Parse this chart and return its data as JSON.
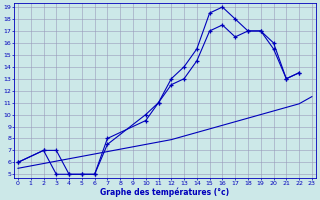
{
  "xlabel": "Graphe des températures (°c)",
  "bg_color": "#cce8e8",
  "line_color": "#0000bb",
  "grid_color": "#9999bb",
  "xmin": 0,
  "xmax": 23,
  "ymin": 5,
  "ymax": 19,
  "line1_x": [
    0,
    2,
    3,
    4,
    5,
    6,
    7,
    10,
    11,
    12,
    13,
    14,
    15,
    16,
    17,
    18,
    19,
    20,
    21,
    22
  ],
  "line1_y": [
    6.0,
    7.0,
    7.0,
    5.0,
    5.0,
    5.0,
    8.0,
    9.5,
    11.0,
    13.0,
    14.0,
    15.5,
    18.5,
    19.0,
    18.0,
    17.0,
    17.0,
    16.0,
    13.0,
    13.5
  ],
  "line2_x": [
    0,
    2,
    3,
    4,
    5,
    6,
    7,
    10,
    11,
    12,
    13,
    14,
    15,
    16,
    17,
    18,
    19,
    20,
    21,
    22
  ],
  "line2_y": [
    6.0,
    7.0,
    5.0,
    5.0,
    5.0,
    5.0,
    7.5,
    10.0,
    11.0,
    12.5,
    13.0,
    14.5,
    17.0,
    17.5,
    16.5,
    17.0,
    17.0,
    15.5,
    13.0,
    13.5
  ],
  "line3_x": [
    0,
    1,
    2,
    3,
    4,
    5,
    6,
    7,
    8,
    9,
    10,
    11,
    12,
    13,
    14,
    15,
    16,
    17,
    18,
    19,
    20,
    21,
    22,
    23
  ],
  "line3_y": [
    5.5,
    5.7,
    5.9,
    6.1,
    6.3,
    6.5,
    6.7,
    6.9,
    7.1,
    7.3,
    7.5,
    7.7,
    7.9,
    8.2,
    8.5,
    8.8,
    9.1,
    9.4,
    9.7,
    10.0,
    10.3,
    10.6,
    10.9,
    11.5
  ]
}
